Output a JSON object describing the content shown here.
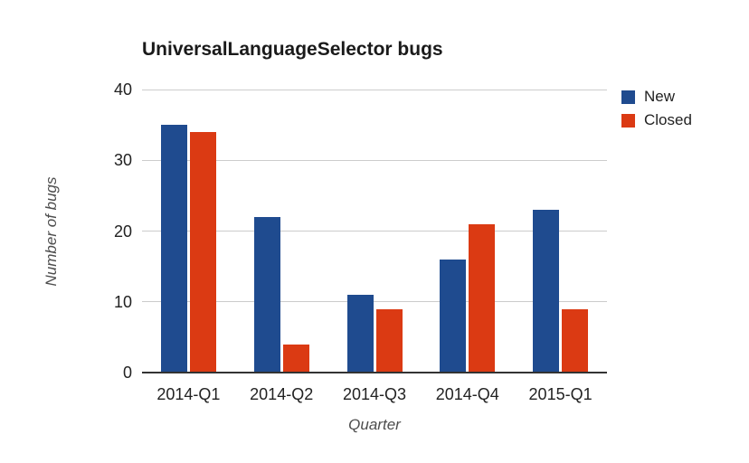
{
  "chart": {
    "background": "#ffffff",
    "grid_color": "#cccccc",
    "axis_line_color": "#333333",
    "tick_label_color": "#222222",
    "axis_title_color": "#4d4d4d"
  },
  "chart_data": {
    "type": "bar",
    "title": "UniversalLanguageSelector bugs",
    "xlabel": "Quarter",
    "ylabel": "Number of bugs",
    "categories": [
      "2014-Q1",
      "2014-Q2",
      "2014-Q3",
      "2014-Q4",
      "2015-Q1"
    ],
    "series": [
      {
        "name": "New",
        "color": "#1F4B8F",
        "values": [
          35,
          22,
          11,
          16,
          23
        ]
      },
      {
        "name": "Closed",
        "color": "#DB3A13",
        "values": [
          34,
          4,
          9,
          21,
          9
        ]
      }
    ],
    "yticks": [
      0,
      10,
      20,
      30,
      40
    ],
    "ylim": [
      0,
      40
    ],
    "grid": true,
    "legend_position": "top-right"
  }
}
